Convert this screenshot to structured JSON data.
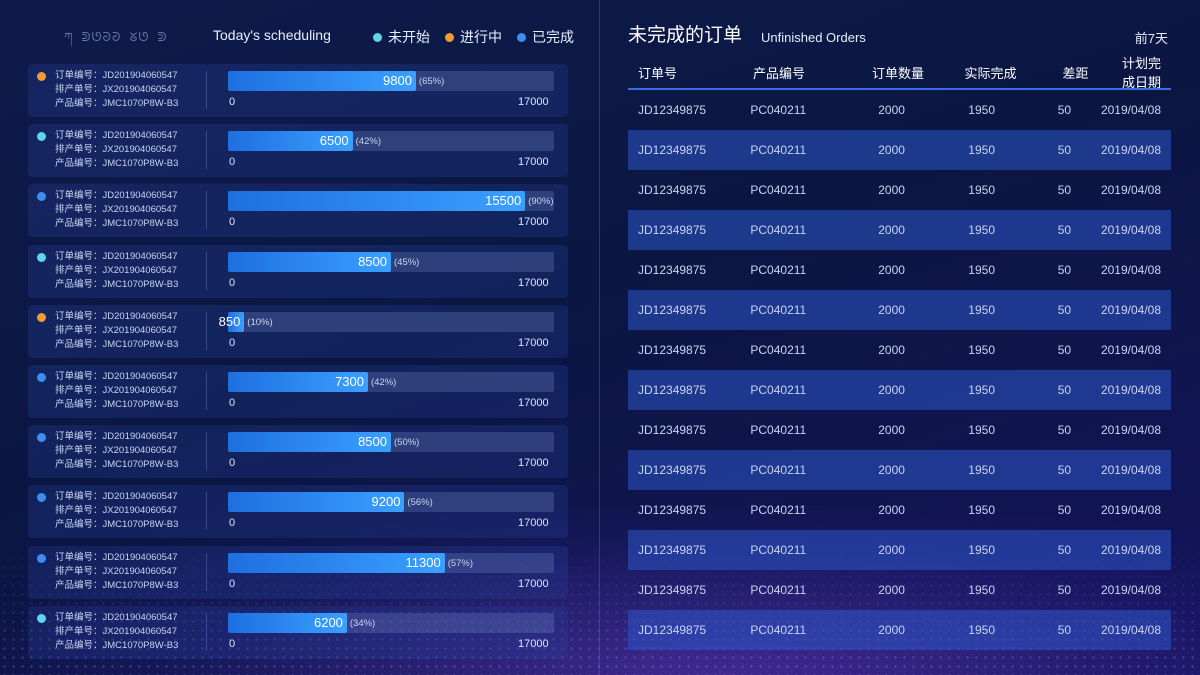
{
  "left": {
    "logo_text": "ཀ ᕲᘎᘐᘑ ᘜᘎ ᕲ",
    "title": "Today's scheduling",
    "legend": [
      {
        "label": "未开始",
        "color": "#5fd6e8"
      },
      {
        "label": "进行中",
        "color": "#f29a36"
      },
      {
        "label": "已完成",
        "color": "#3d8ef0"
      }
    ],
    "rows": [
      {
        "status_color": "#f29a36",
        "order_label": "订单编号：",
        "order_no": "JD201904060547",
        "sched_label": "排产单号：",
        "sched_no": "JX201904060547",
        "product_label": "产品编号：",
        "product_no": "JMC1070P8W-B3",
        "value": 9800,
        "value_text": "9800",
        "percent_text": "(65%)",
        "min_text": "0",
        "max": 17000,
        "max_text": "17000"
      },
      {
        "status_color": "#5fd6e8",
        "order_label": "订单编号：",
        "order_no": "JD201904060547",
        "sched_label": "排产单号：",
        "sched_no": "JX201904060547",
        "product_label": "产品编号：",
        "product_no": "JMC1070P8W-B3",
        "value": 6500,
        "value_text": "6500",
        "percent_text": "(42%)",
        "min_text": "0",
        "max": 17000,
        "max_text": "17000"
      },
      {
        "status_color": "#3d8ef0",
        "order_label": "订单编号：",
        "order_no": "JD201904060547",
        "sched_label": "排产单号：",
        "sched_no": "JX201904060547",
        "product_label": "产品编号：",
        "product_no": "JMC1070P8W-B3",
        "value": 15500,
        "value_text": "15500",
        "percent_text": "(90%)",
        "min_text": "0",
        "max": 17000,
        "max_text": "17000"
      },
      {
        "status_color": "#5fd6e8",
        "order_label": "订单编号：",
        "order_no": "JD201904060547",
        "sched_label": "排产单号：",
        "sched_no": "JX201904060547",
        "product_label": "产品编号：",
        "product_no": "JMC1070P8W-B3",
        "value": 8500,
        "value_text": "8500",
        "percent_text": "(45%)",
        "min_text": "0",
        "max": 17000,
        "max_text": "17000"
      },
      {
        "status_color": "#f29a36",
        "order_label": "订单编号：",
        "order_no": "JD201904060547",
        "sched_label": "排产单号：",
        "sched_no": "JX201904060547",
        "product_label": "产品编号：",
        "product_no": "JMC1070P8W-B3",
        "value": 850,
        "value_text": "850",
        "percent_text": "(10%)",
        "min_text": "0",
        "max": 17000,
        "max_text": "17000"
      },
      {
        "status_color": "#3d8ef0",
        "order_label": "订单编号：",
        "order_no": "JD201904060547",
        "sched_label": "排产单号：",
        "sched_no": "JX201904060547",
        "product_label": "产品编号：",
        "product_no": "JMC1070P8W-B3",
        "value": 7300,
        "value_text": "7300",
        "percent_text": "(42%)",
        "min_text": "0",
        "max": 17000,
        "max_text": "17000"
      },
      {
        "status_color": "#3d8ef0",
        "order_label": "订单编号：",
        "order_no": "JD201904060547",
        "sched_label": "排产单号：",
        "sched_no": "JX201904060547",
        "product_label": "产品编号：",
        "product_no": "JMC1070P8W-B3",
        "value": 8500,
        "value_text": "8500",
        "percent_text": "(50%)",
        "min_text": "0",
        "max": 17000,
        "max_text": "17000"
      },
      {
        "status_color": "#3d8ef0",
        "order_label": "订单编号：",
        "order_no": "JD201904060547",
        "sched_label": "排产单号：",
        "sched_no": "JX201904060547",
        "product_label": "产品编号：",
        "product_no": "JMC1070P8W-B3",
        "value": 9200,
        "value_text": "9200",
        "percent_text": "(56%)",
        "min_text": "0",
        "max": 17000,
        "max_text": "17000"
      },
      {
        "status_color": "#3d8ef0",
        "order_label": "订单编号：",
        "order_no": "JD201904060547",
        "sched_label": "排产单号：",
        "sched_no": "JX201904060547",
        "product_label": "产品编号：",
        "product_no": "JMC1070P8W-B3",
        "value": 11300,
        "value_text": "11300",
        "percent_text": "(57%)",
        "min_text": "0",
        "max": 17000,
        "max_text": "17000"
      },
      {
        "status_color": "#5fd6e8",
        "order_label": "订单编号：",
        "order_no": "JD201904060547",
        "sched_label": "排产单号：",
        "sched_no": "JX201904060547",
        "product_label": "产品编号：",
        "product_no": "JMC1070P8W-B3",
        "value": 6200,
        "value_text": "6200",
        "percent_text": "(34%)",
        "min_text": "0",
        "max": 17000,
        "max_text": "17000"
      }
    ]
  },
  "right": {
    "title": "未完成的订单",
    "subtitle": "Unfinished Orders",
    "range_label": "前7天",
    "headers": [
      "订单号",
      "产品编号",
      "订单数量",
      "实际完成",
      "差距",
      "计划完成日期"
    ],
    "rows": [
      [
        "JD12349875",
        "PC040211",
        "2000",
        "1950",
        "50",
        "2019/04/08"
      ],
      [
        "JD12349875",
        "PC040211",
        "2000",
        "1950",
        "50",
        "2019/04/08"
      ],
      [
        "JD12349875",
        "PC040211",
        "2000",
        "1950",
        "50",
        "2019/04/08"
      ],
      [
        "JD12349875",
        "PC040211",
        "2000",
        "1950",
        "50",
        "2019/04/08"
      ],
      [
        "JD12349875",
        "PC040211",
        "2000",
        "1950",
        "50",
        "2019/04/08"
      ],
      [
        "JD12349875",
        "PC040211",
        "2000",
        "1950",
        "50",
        "2019/04/08"
      ],
      [
        "JD12349875",
        "PC040211",
        "2000",
        "1950",
        "50",
        "2019/04/08"
      ],
      [
        "JD12349875",
        "PC040211",
        "2000",
        "1950",
        "50",
        "2019/04/08"
      ],
      [
        "JD12349875",
        "PC040211",
        "2000",
        "1950",
        "50",
        "2019/04/08"
      ],
      [
        "JD12349875",
        "PC040211",
        "2000",
        "1950",
        "50",
        "2019/04/08"
      ],
      [
        "JD12349875",
        "PC040211",
        "2000",
        "1950",
        "50",
        "2019/04/08"
      ],
      [
        "JD12349875",
        "PC040211",
        "2000",
        "1950",
        "50",
        "2019/04/08"
      ],
      [
        "JD12349875",
        "PC040211",
        "2000",
        "1950",
        "50",
        "2019/04/08"
      ],
      [
        "JD12349875",
        "PC040211",
        "2000",
        "1950",
        "50",
        "2019/04/08"
      ]
    ]
  }
}
